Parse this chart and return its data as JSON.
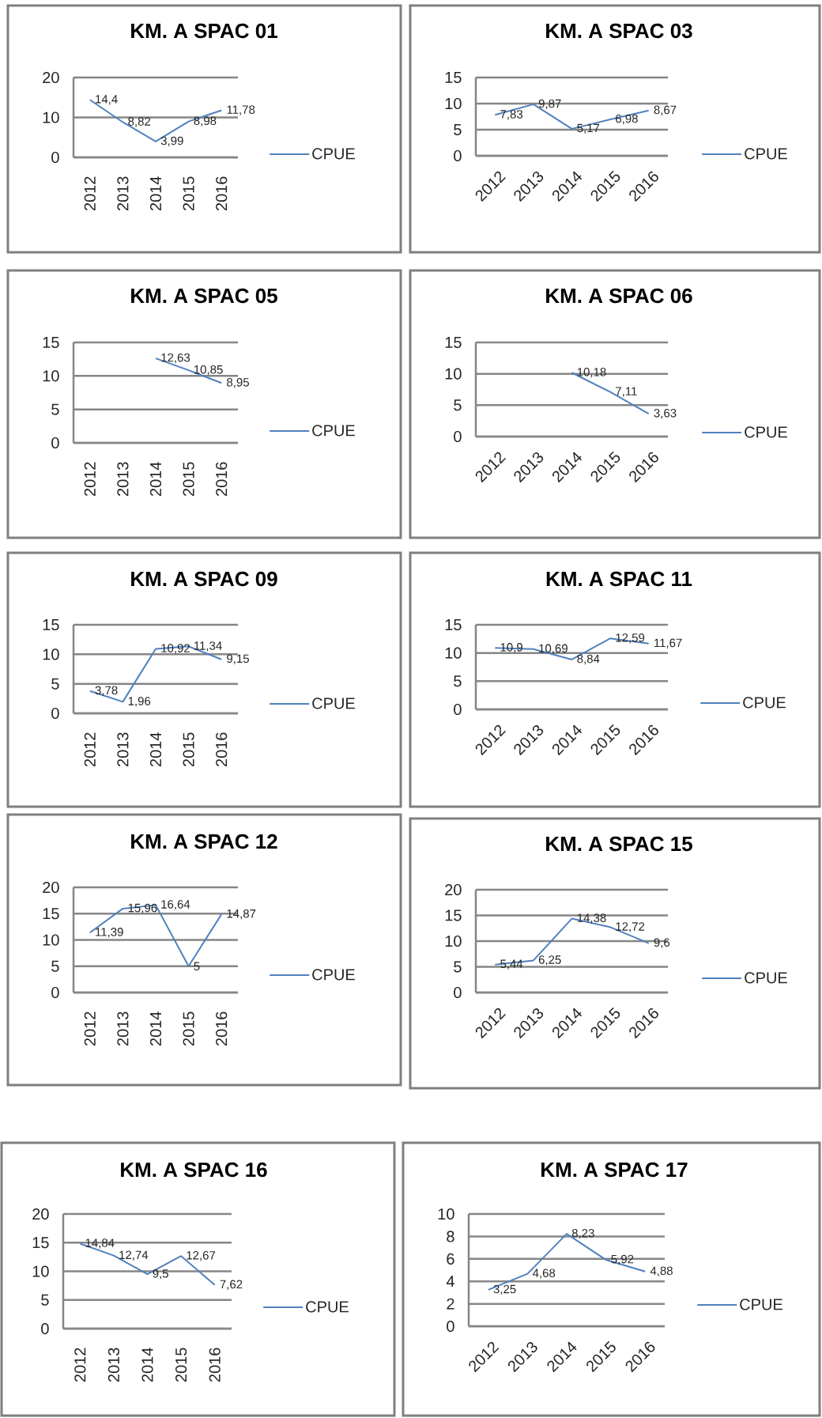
{
  "chart_data": [
    {
      "type": "line",
      "title": "KM. A SPAC 01",
      "categories": [
        "2012",
        "2013",
        "2014",
        "2015",
        "2016"
      ],
      "series": [
        {
          "name": "CPUE",
          "color": "#4f81bd",
          "values": [
            14.4,
            8.82,
            3.99,
            8.98,
            11.78
          ],
          "value_labels": [
            "14,4",
            "8,82",
            "3,99",
            "8,98",
            "11,78"
          ]
        }
      ],
      "ylim": [
        0,
        20
      ],
      "yticks": [
        0,
        10,
        20
      ],
      "grid": "y",
      "legend": "right"
    },
    {
      "type": "line",
      "title": "KM. A SPAC 03",
      "categories": [
        "2012",
        "2013",
        "2014",
        "2015",
        "2016"
      ],
      "series": [
        {
          "name": "CPUE",
          "color": "#4f81bd",
          "values": [
            7.83,
            9.87,
            5.17,
            6.98,
            8.67
          ],
          "value_labels": [
            "7,83",
            "9,87",
            "5,17",
            "6,98",
            "8,67"
          ]
        }
      ],
      "ylim": [
        0,
        15
      ],
      "yticks": [
        0,
        5,
        10,
        15
      ],
      "grid": "y",
      "legend": "right"
    },
    {
      "type": "line",
      "title": "KM. A SPAC 05",
      "categories": [
        "2012",
        "2013",
        "2014",
        "2015",
        "2016"
      ],
      "series": [
        {
          "name": "CPUE",
          "color": "#4f81bd",
          "values": [
            null,
            null,
            12.63,
            10.85,
            8.95
          ],
          "value_labels": [
            null,
            null,
            "12,63",
            "10,85",
            "8,95"
          ]
        }
      ],
      "ylim": [
        0,
        15
      ],
      "yticks": [
        0,
        5,
        10,
        15
      ],
      "grid": "y",
      "legend": "right"
    },
    {
      "type": "line",
      "title": "KM. A SPAC 06",
      "categories": [
        "2012",
        "2013",
        "2014",
        "2015",
        "2016"
      ],
      "series": [
        {
          "name": "CPUE",
          "color": "#4f81bd",
          "values": [
            null,
            null,
            10.18,
            7.11,
            3.63
          ],
          "value_labels": [
            null,
            null,
            "10,18",
            "7,11",
            "3,63"
          ]
        }
      ],
      "ylim": [
        0,
        15
      ],
      "yticks": [
        0,
        5,
        10,
        15
      ],
      "grid": "y",
      "legend": "right"
    },
    {
      "type": "line",
      "title": "KM. A SPAC 09",
      "categories": [
        "2012",
        "2013",
        "2014",
        "2015",
        "2016"
      ],
      "series": [
        {
          "name": "CPUE",
          "color": "#4f81bd",
          "values": [
            3.78,
            1.96,
            10.92,
            11.34,
            9.15
          ],
          "value_labels": [
            "3,78",
            "1,96",
            "10,92",
            "11,34",
            "9,15"
          ]
        }
      ],
      "ylim": [
        0,
        15
      ],
      "yticks": [
        0,
        5,
        10,
        15
      ],
      "grid": "y",
      "legend": "right"
    },
    {
      "type": "line",
      "title": "KM. A SPAC 11",
      "categories": [
        "2012",
        "2013",
        "2014",
        "2015",
        "2016"
      ],
      "series": [
        {
          "name": "CPUE",
          "color": "#4f81bd",
          "values": [
            10.9,
            10.69,
            8.84,
            12.59,
            11.67
          ],
          "value_labels": [
            "10,9",
            "10,69",
            "8,84",
            "12,59",
            "11,67"
          ]
        }
      ],
      "ylim": [
        0,
        15
      ],
      "yticks": [
        0,
        5,
        10,
        15
      ],
      "grid": "y",
      "legend": "right"
    },
    {
      "type": "line",
      "title": "KM. A SPAC 12",
      "categories": [
        "2012",
        "2013",
        "2014",
        "2015",
        "2016"
      ],
      "series": [
        {
          "name": "CPUE",
          "color": "#4f81bd",
          "values": [
            11.39,
            15.96,
            16.64,
            5,
            14.87
          ],
          "value_labels": [
            "11,39",
            "15,96",
            "16,64",
            "5",
            "14,87"
          ]
        }
      ],
      "ylim": [
        0,
        20
      ],
      "yticks": [
        0,
        5,
        10,
        15,
        20
      ],
      "grid": "y",
      "legend": "right"
    },
    {
      "type": "line",
      "title": "KM. A SPAC 15",
      "categories": [
        "2012",
        "2013",
        "2014",
        "2015",
        "2016"
      ],
      "series": [
        {
          "name": "CPUE",
          "color": "#4f81bd",
          "values": [
            5.44,
            6.25,
            14.38,
            12.72,
            9.6
          ],
          "value_labels": [
            "5,44",
            "6,25",
            "14,38",
            "12,72",
            "9,6"
          ]
        }
      ],
      "ylim": [
        0,
        20
      ],
      "yticks": [
        0,
        5,
        10,
        15,
        20
      ],
      "grid": "y",
      "legend": "right"
    },
    {
      "type": "line",
      "title": "KM. A SPAC 16",
      "categories": [
        "2012",
        "2013",
        "2014",
        "2015",
        "2016"
      ],
      "series": [
        {
          "name": "CPUE",
          "color": "#4f81bd",
          "values": [
            14.84,
            12.74,
            9.5,
            12.67,
            7.62
          ],
          "value_labels": [
            "14,84",
            "12,74",
            "9,5",
            "12,67",
            "7,62"
          ]
        }
      ],
      "ylim": [
        0,
        20
      ],
      "yticks": [
        0,
        5,
        10,
        15,
        20
      ],
      "grid": "y",
      "legend": "right"
    },
    {
      "type": "line",
      "title": "KM. A SPAC 17",
      "categories": [
        "2012",
        "2013",
        "2014",
        "2015",
        "2016"
      ],
      "series": [
        {
          "name": "CPUE",
          "color": "#4f81bd",
          "values": [
            3.25,
            4.68,
            8.23,
            5.92,
            4.88
          ],
          "value_labels": [
            "3,25",
            "4,68",
            "8,23",
            "5,92",
            "4,88"
          ]
        }
      ],
      "ylim": [
        0,
        10
      ],
      "yticks": [
        0,
        2,
        4,
        6,
        8,
        10
      ],
      "grid": "y",
      "legend": "right"
    }
  ]
}
